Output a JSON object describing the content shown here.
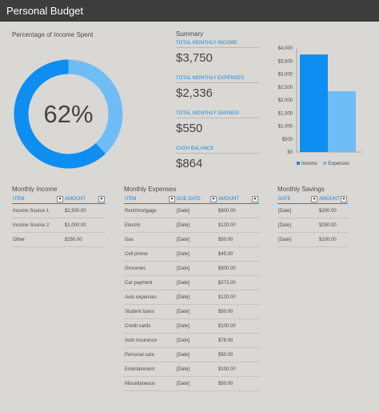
{
  "title": "Personal Budget",
  "percent_section": {
    "label": "Percentage of Income Spent",
    "value_text": "62%",
    "percent": 62
  },
  "summary": {
    "label": "Summary",
    "items": [
      {
        "label": "TOTAL MONTHLY INCOME",
        "value": "$3,750"
      },
      {
        "label": "TOTAL MONTHLY EXPENSES",
        "value": "$2,336"
      },
      {
        "label": "TOTAL MONTHLY SAVINGS",
        "value": "$550"
      },
      {
        "label": "CASH BALANCE",
        "value": "$864"
      }
    ]
  },
  "colors": {
    "income": "#0d8ef0",
    "expenses": "#6fbdf6",
    "accent": "#1b86d8"
  },
  "chart_data": {
    "type": "bar",
    "categories": [
      "Income",
      "Expenses"
    ],
    "values": [
      3750,
      2336
    ],
    "ylim": [
      0,
      4000
    ],
    "yticks": [
      0,
      500,
      1000,
      1500,
      2000,
      2500,
      3000,
      3500,
      4000
    ],
    "ytick_labels": [
      "$0",
      "$500",
      "$1,000",
      "$1,500",
      "$2,000",
      "$2,500",
      "$3,000",
      "$3,500",
      "$4,000"
    ],
    "legend": [
      "Income",
      "Expenses"
    ],
    "legend_position": "bottom",
    "grid": false
  },
  "income": {
    "title": "Monthly Income",
    "headers": [
      "ITEM",
      "AMOUNT"
    ],
    "rows": [
      [
        "Income Source 1",
        "$2,500.00"
      ],
      [
        "Income Source 2",
        "$1,000.00"
      ],
      [
        "Other",
        "$250.00"
      ]
    ]
  },
  "expenses": {
    "title": "Monthly Expenses",
    "headers": [
      "ITEM",
      "DUE DATE",
      "AMOUNT"
    ],
    "rows": [
      [
        "Rent/mortgage",
        "[Date]",
        "$800.00"
      ],
      [
        "Electric",
        "[Date]",
        "$120.00"
      ],
      [
        "Gas",
        "[Date]",
        "$50.00"
      ],
      [
        "Cell phone",
        "[Date]",
        "$45.00"
      ],
      [
        "Groceries",
        "[Date]",
        "$500.00"
      ],
      [
        "Car payment",
        "[Date]",
        "$273.00"
      ],
      [
        "Auto expenses",
        "[Date]",
        "$120.00"
      ],
      [
        "Student loans",
        "[Date]",
        "$50.00"
      ],
      [
        "Credit cards",
        "[Date]",
        "$100.00"
      ],
      [
        "Auto insurance",
        "[Date]",
        "$78.00"
      ],
      [
        "Personal care",
        "[Date]",
        "$50.00"
      ],
      [
        "Entertainment",
        "[Date]",
        "$100.00"
      ],
      [
        "Miscellaneous",
        "[Date]",
        "$50.00"
      ]
    ]
  },
  "savings": {
    "title": "Monthly Savings",
    "headers": [
      "DATE",
      "AMOUNT"
    ],
    "rows": [
      [
        "[Date]",
        "$200.00"
      ],
      [
        "[Date]",
        "$250.00"
      ],
      [
        "[Date]",
        "$100.00"
      ]
    ]
  }
}
